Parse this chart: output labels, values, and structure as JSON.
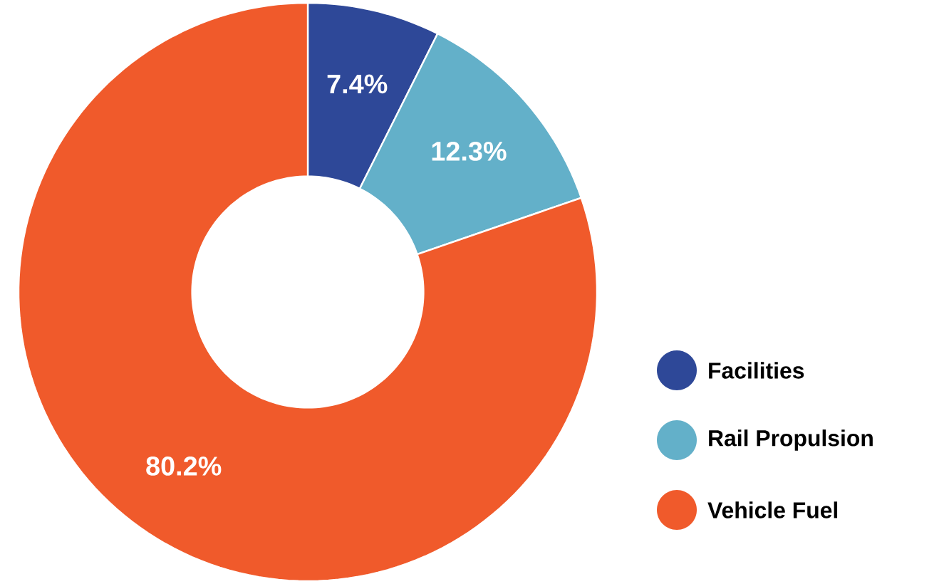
{
  "chart_data": {
    "type": "donut",
    "categories": [
      "Facilities",
      "Rail Propulsion",
      "Vehicle Fuel"
    ],
    "values": [
      7.4,
      12.3,
      80.2
    ],
    "colors": [
      "#2e4898",
      "#63b0c9",
      "#f05a2b"
    ],
    "value_labels": [
      "7.4%",
      "12.3%",
      "80.2%"
    ],
    "legend": "right"
  }
}
